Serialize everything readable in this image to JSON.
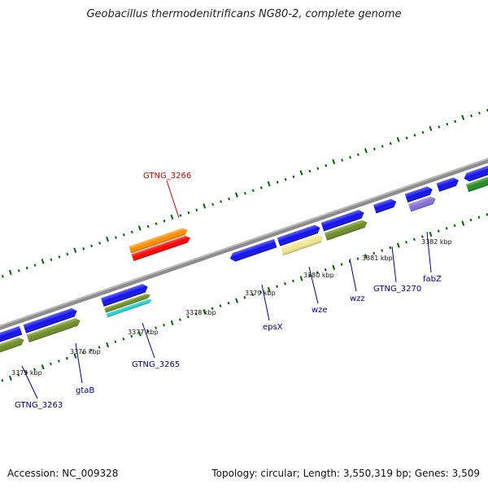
{
  "title": "Geobacillus thermodenitrificans NG80-2, complete genome",
  "footer": {
    "accession": "Accession: NC_009328",
    "summary": "Topology: circular; Length: 3,550,319 bp; Genes: 3,509"
  },
  "kbp_labels": [
    "3375 kbp",
    "3376 kbp",
    "3377 kbp",
    "3378 kbp",
    "3379 kbp",
    "3380 kbp",
    "3381 kbp",
    "3382 kbp"
  ],
  "gene_labels": {
    "gtng_3266": "GTNG_3266",
    "gtng_3263": "GTNG_3263",
    "gtab": "gtaB",
    "gtng_3265": "GTNG_3265",
    "epsx": "epsX",
    "wze": "wze",
    "wzz": "wzz",
    "gtng_3270": "GTNG_3270",
    "fabz": "fabZ"
  },
  "colors": {
    "backbone": "#888888",
    "gene_blue": "#1010ee",
    "gene_olive": "#6b8e23",
    "gene_orange": "#ff8c00",
    "gene_red": "#ff0000",
    "gene_cyan": "#20d0d0",
    "gene_khaki": "#f0e68c",
    "gene_purple": "#8470d8",
    "gene_green": "#228b22",
    "tick_green": "#006400",
    "label_blue": "#00008b",
    "label_red": "#cc0000"
  }
}
